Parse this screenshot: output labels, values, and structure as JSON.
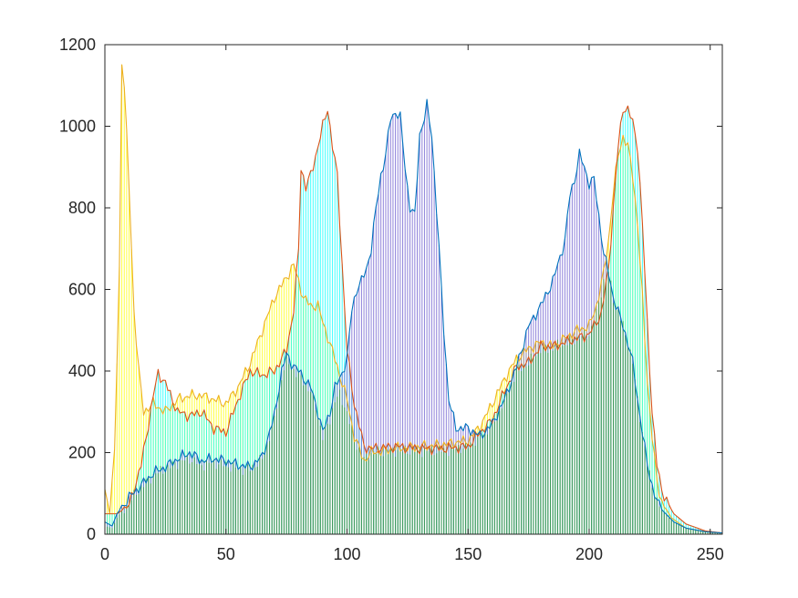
{
  "chart_data": {
    "type": "area",
    "title": "",
    "xlabel": "",
    "ylabel": "",
    "xlim": [
      0,
      255
    ],
    "ylim": [
      0,
      1200
    ],
    "grid": false,
    "x_ticks": [
      0,
      50,
      100,
      150,
      200,
      250
    ],
    "x_tick_labels": [
      "0",
      "50",
      "100",
      "150",
      "200",
      "250"
    ],
    "y_ticks": [
      0,
      200,
      400,
      600,
      800,
      1000,
      1200
    ],
    "y_tick_labels": [
      "0",
      "200",
      "400",
      "600",
      "800",
      "1000",
      "1200"
    ],
    "series": [
      {
        "name": "yellow",
        "stroke": "#EDB120",
        "fill": "#FFFF00",
        "points": [
          [
            0,
            110
          ],
          [
            2,
            50
          ],
          [
            4,
            200
          ],
          [
            6,
            650
          ],
          [
            7,
            1160
          ],
          [
            8,
            1100
          ],
          [
            10,
            850
          ],
          [
            12,
            550
          ],
          [
            14,
            400
          ],
          [
            16,
            300
          ],
          [
            20,
            320
          ],
          [
            25,
            300
          ],
          [
            30,
            330
          ],
          [
            35,
            340
          ],
          [
            40,
            340
          ],
          [
            45,
            330
          ],
          [
            50,
            320
          ],
          [
            55,
            360
          ],
          [
            60,
            420
          ],
          [
            65,
            500
          ],
          [
            70,
            580
          ],
          [
            75,
            630
          ],
          [
            78,
            660
          ],
          [
            80,
            620
          ],
          [
            82,
            580
          ],
          [
            85,
            560
          ],
          [
            88,
            560
          ],
          [
            90,
            520
          ],
          [
            95,
            430
          ],
          [
            100,
            330
          ],
          [
            103,
            240
          ],
          [
            107,
            180
          ],
          [
            110,
            200
          ],
          [
            120,
            210
          ],
          [
            130,
            215
          ],
          [
            140,
            220
          ],
          [
            150,
            230
          ],
          [
            155,
            265
          ],
          [
            160,
            320
          ],
          [
            165,
            380
          ],
          [
            170,
            430
          ],
          [
            175,
            455
          ],
          [
            180,
            470
          ],
          [
            185,
            460
          ],
          [
            190,
            480
          ],
          [
            195,
            500
          ],
          [
            200,
            510
          ],
          [
            203,
            560
          ],
          [
            206,
            640
          ],
          [
            208,
            720
          ],
          [
            210,
            840
          ],
          [
            212,
            930
          ],
          [
            214,
            975
          ],
          [
            216,
            950
          ],
          [
            218,
            880
          ],
          [
            220,
            760
          ],
          [
            222,
            580
          ],
          [
            224,
            380
          ],
          [
            226,
            240
          ],
          [
            228,
            130
          ],
          [
            230,
            80
          ],
          [
            234,
            40
          ],
          [
            240,
            15
          ],
          [
            248,
            6
          ],
          [
            255,
            3
          ]
        ]
      },
      {
        "name": "red",
        "stroke": "#D95319",
        "fill": "#00FFFF",
        "points": [
          [
            0,
            50
          ],
          [
            5,
            50
          ],
          [
            10,
            70
          ],
          [
            12,
            110
          ],
          [
            15,
            170
          ],
          [
            18,
            270
          ],
          [
            20,
            340
          ],
          [
            22,
            395
          ],
          [
            25,
            370
          ],
          [
            30,
            300
          ],
          [
            35,
            290
          ],
          [
            40,
            300
          ],
          [
            45,
            260
          ],
          [
            50,
            250
          ],
          [
            55,
            330
          ],
          [
            60,
            400
          ],
          [
            65,
            390
          ],
          [
            70,
            400
          ],
          [
            75,
            450
          ],
          [
            78,
            550
          ],
          [
            80,
            700
          ],
          [
            81,
            900
          ],
          [
            83,
            850
          ],
          [
            85,
            880
          ],
          [
            88,
            950
          ],
          [
            90,
            1000
          ],
          [
            92,
            1045
          ],
          [
            94,
            950
          ],
          [
            96,
            880
          ],
          [
            98,
            660
          ],
          [
            100,
            450
          ],
          [
            103,
            320
          ],
          [
            107,
            215
          ],
          [
            110,
            210
          ],
          [
            120,
            215
          ],
          [
            130,
            210
          ],
          [
            140,
            210
          ],
          [
            150,
            215
          ],
          [
            155,
            250
          ],
          [
            160,
            280
          ],
          [
            165,
            350
          ],
          [
            170,
            410
          ],
          [
            175,
            420
          ],
          [
            180,
            460
          ],
          [
            185,
            460
          ],
          [
            190,
            470
          ],
          [
            195,
            480
          ],
          [
            200,
            490
          ],
          [
            205,
            540
          ],
          [
            208,
            650
          ],
          [
            210,
            800
          ],
          [
            212,
            950
          ],
          [
            214,
            1045
          ],
          [
            216,
            1040
          ],
          [
            218,
            1010
          ],
          [
            220,
            950
          ],
          [
            222,
            760
          ],
          [
            224,
            520
          ],
          [
            226,
            300
          ],
          [
            228,
            170
          ],
          [
            230,
            110
          ],
          [
            232,
            80
          ],
          [
            235,
            50
          ],
          [
            240,
            25
          ],
          [
            248,
            8
          ],
          [
            255,
            3
          ]
        ]
      },
      {
        "name": "blue",
        "stroke": "#0072BD",
        "fill": "#6A5ACD",
        "points": [
          [
            0,
            30
          ],
          [
            3,
            20
          ],
          [
            5,
            50
          ],
          [
            10,
            90
          ],
          [
            15,
            120
          ],
          [
            20,
            150
          ],
          [
            25,
            165
          ],
          [
            30,
            185
          ],
          [
            35,
            200
          ],
          [
            40,
            180
          ],
          [
            45,
            185
          ],
          [
            50,
            180
          ],
          [
            55,
            170
          ],
          [
            60,
            165
          ],
          [
            65,
            190
          ],
          [
            70,
            290
          ],
          [
            73,
            400
          ],
          [
            75,
            440
          ],
          [
            77,
            420
          ],
          [
            80,
            400
          ],
          [
            85,
            360
          ],
          [
            88,
            300
          ],
          [
            90,
            250
          ],
          [
            93,
            300
          ],
          [
            95,
            360
          ],
          [
            97,
            380
          ],
          [
            100,
            430
          ],
          [
            102,
            550
          ],
          [
            104,
            600
          ],
          [
            106,
            620
          ],
          [
            108,
            650
          ],
          [
            110,
            700
          ],
          [
            112,
            800
          ],
          [
            114,
            880
          ],
          [
            116,
            930
          ],
          [
            118,
            1020
          ],
          [
            120,
            1035
          ],
          [
            122,
            1020
          ],
          [
            124,
            900
          ],
          [
            126,
            800
          ],
          [
            128,
            780
          ],
          [
            130,
            980
          ],
          [
            132,
            1020
          ],
          [
            133,
            1050
          ],
          [
            135,
            980
          ],
          [
            138,
            700
          ],
          [
            140,
            500
          ],
          [
            142,
            330
          ],
          [
            145,
            260
          ],
          [
            150,
            260
          ],
          [
            155,
            240
          ],
          [
            160,
            270
          ],
          [
            165,
            330
          ],
          [
            170,
            410
          ],
          [
            175,
            510
          ],
          [
            180,
            560
          ],
          [
            185,
            620
          ],
          [
            190,
            720
          ],
          [
            192,
            830
          ],
          [
            194,
            870
          ],
          [
            196,
            930
          ],
          [
            198,
            900
          ],
          [
            200,
            860
          ],
          [
            202,
            870
          ],
          [
            204,
            780
          ],
          [
            206,
            690
          ],
          [
            208,
            640
          ],
          [
            210,
            580
          ],
          [
            212,
            545
          ],
          [
            214,
            510
          ],
          [
            216,
            470
          ],
          [
            218,
            420
          ],
          [
            220,
            330
          ],
          [
            222,
            250
          ],
          [
            224,
            170
          ],
          [
            226,
            120
          ],
          [
            228,
            80
          ],
          [
            230,
            60
          ],
          [
            235,
            30
          ],
          [
            240,
            15
          ],
          [
            248,
            6
          ],
          [
            255,
            3
          ]
        ]
      },
      {
        "name": "green",
        "stroke": "none",
        "fill": "#2E9E2E",
        "points": [
          [
            0,
            20
          ],
          [
            3,
            15
          ],
          [
            5,
            40
          ],
          [
            10,
            80
          ],
          [
            15,
            115
          ],
          [
            20,
            145
          ],
          [
            25,
            160
          ],
          [
            30,
            175
          ],
          [
            35,
            185
          ],
          [
            40,
            170
          ],
          [
            45,
            175
          ],
          [
            50,
            170
          ],
          [
            55,
            160
          ],
          [
            60,
            160
          ],
          [
            65,
            185
          ],
          [
            70,
            280
          ],
          [
            73,
            385
          ],
          [
            75,
            430
          ],
          [
            77,
            410
          ],
          [
            80,
            390
          ],
          [
            85,
            350
          ],
          [
            88,
            290
          ],
          [
            90,
            240
          ],
          [
            93,
            280
          ],
          [
            95,
            330
          ],
          [
            97,
            340
          ],
          [
            100,
            300
          ],
          [
            103,
            230
          ],
          [
            107,
            185
          ],
          [
            110,
            200
          ],
          [
            120,
            205
          ],
          [
            130,
            205
          ],
          [
            140,
            205
          ],
          [
            150,
            215
          ],
          [
            155,
            240
          ],
          [
            160,
            270
          ],
          [
            165,
            330
          ],
          [
            170,
            400
          ],
          [
            175,
            420
          ],
          [
            180,
            455
          ],
          [
            185,
            455
          ],
          [
            190,
            470
          ],
          [
            195,
            480
          ],
          [
            200,
            490
          ],
          [
            203,
            540
          ],
          [
            206,
            620
          ],
          [
            208,
            640
          ],
          [
            210,
            580
          ],
          [
            212,
            545
          ],
          [
            214,
            510
          ],
          [
            216,
            470
          ],
          [
            218,
            420
          ],
          [
            220,
            330
          ],
          [
            222,
            250
          ],
          [
            224,
            170
          ],
          [
            226,
            120
          ],
          [
            228,
            80
          ],
          [
            230,
            60
          ],
          [
            235,
            30
          ],
          [
            240,
            15
          ],
          [
            248,
            6
          ],
          [
            255,
            3
          ]
        ]
      }
    ]
  }
}
